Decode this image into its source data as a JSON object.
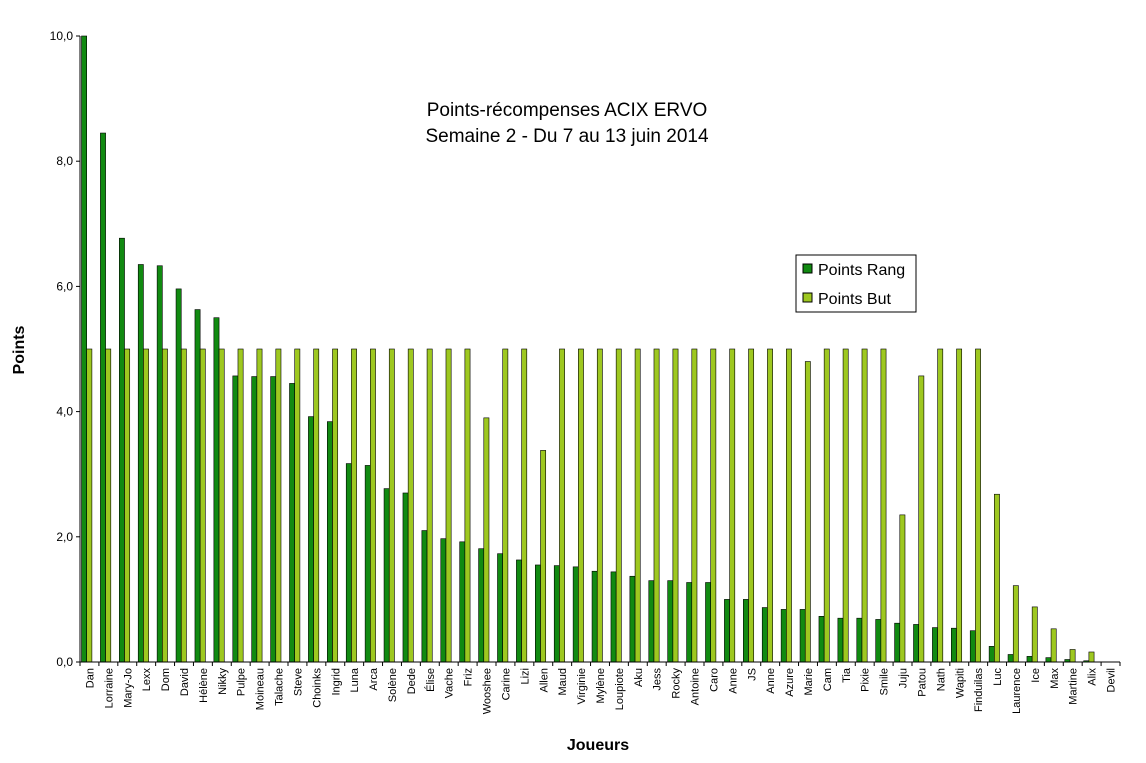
{
  "chart_data": {
    "type": "bar",
    "title_line1": "Points-récompenses ACIX ERVO",
    "title_line2": "Semaine 2 - Du 7 au 13 juin 2014",
    "xlabel": "Joueurs",
    "ylabel": "Points",
    "ylim": [
      0,
      10
    ],
    "yticks": [
      "0,0",
      "2,0",
      "4,0",
      "6,0",
      "8,0",
      "10,0"
    ],
    "grid": false,
    "legend_position": "right",
    "categories": [
      "Dan",
      "Lorraine",
      "Mary-Jo",
      "Lexx",
      "Dom",
      "David",
      "Hélène",
      "Nikky",
      "Pulpe",
      "Moineau",
      "Talache",
      "Steve",
      "Choinks",
      "Ingrid",
      "Luna",
      "Arca",
      "Solène",
      "Dede",
      "Élise",
      "Vache",
      "Friz",
      "Wooshee",
      "Carine",
      "Lizi",
      "Allen",
      "Maud",
      "Virginie",
      "Mylène",
      "Loupiote",
      "Aku",
      "Jess",
      "Rocky",
      "Antoine",
      "Caro",
      "Anne",
      "JS",
      "Anne",
      "Azure",
      "Marie",
      "Cam",
      "Tia",
      "Pixie",
      "Smile",
      "Juju",
      "Patou",
      "Nath",
      "Wapiti",
      "Finduilas",
      "Luc",
      "Laurence",
      "Ice",
      "Max",
      "Martine",
      "Alix",
      "Devil"
    ],
    "series": [
      {
        "name": "Points Rang",
        "color": "#118a11",
        "values": [
          10.0,
          8.45,
          6.77,
          6.35,
          6.33,
          5.96,
          5.63,
          5.5,
          4.57,
          4.56,
          4.56,
          4.45,
          3.92,
          3.84,
          3.17,
          3.14,
          2.77,
          2.7,
          2.1,
          1.97,
          1.92,
          1.81,
          1.73,
          1.63,
          1.55,
          1.54,
          1.52,
          1.45,
          1.44,
          1.37,
          1.3,
          1.3,
          1.27,
          1.27,
          1.0,
          1.0,
          0.87,
          0.84,
          0.84,
          0.73,
          0.7,
          0.7,
          0.68,
          0.62,
          0.6,
          0.55,
          0.54,
          0.5,
          0.25,
          0.12,
          0.09,
          0.07,
          0.04,
          0.02,
          0.0
        ]
      },
      {
        "name": "Points But",
        "color": "#9ec820",
        "values": [
          5,
          5,
          5,
          5,
          5,
          5,
          5,
          5,
          5,
          5,
          5,
          5,
          5,
          5,
          5,
          5,
          5,
          5,
          5,
          5,
          5,
          3.9,
          5,
          5,
          3.38,
          5,
          5,
          5,
          5,
          5,
          5,
          5,
          5,
          5,
          5,
          5,
          5,
          5,
          4.8,
          5,
          5,
          5,
          5,
          2.35,
          4.57,
          5,
          5,
          5,
          2.68,
          1.22,
          0.88,
          0.53,
          0.2,
          0.16,
          0.0
        ]
      }
    ]
  }
}
